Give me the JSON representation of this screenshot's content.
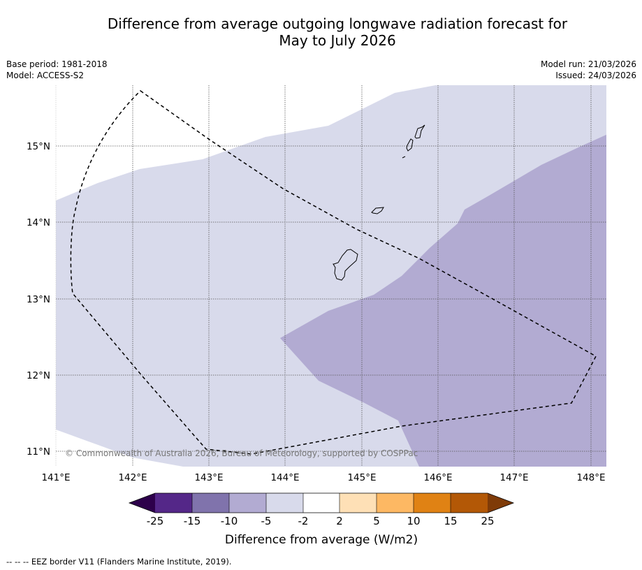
{
  "title": {
    "line1": "Difference from average outgoing longwave radiation forecast for",
    "line2": "May to July 2026"
  },
  "meta": {
    "base_period": "Base period: 1981-2018",
    "model": "Model: ACCESS-S2",
    "model_run": "Model run: 21/03/2026",
    "issued": "Issued: 24/03/2026"
  },
  "map": {
    "lon_labels": [
      "141°E",
      "142°E",
      "143°E",
      "144°E",
      "145°E",
      "146°E",
      "147°E",
      "148°E"
    ],
    "lat_labels": [
      "15°N",
      "14°N",
      "13°N",
      "12°N",
      "11°N"
    ],
    "copyright": "© Commonwealth of Australia 2026, Bureau of Meteorology, supported by COSPPac"
  },
  "colorbar": {
    "ticks": [
      "-25",
      "-15",
      "-10",
      "-5",
      "-2",
      "2",
      "5",
      "10",
      "15",
      "25"
    ],
    "colors": {
      "under": "#2d004b",
      "c1": "#542788",
      "c2": "#8073ac",
      "c3": "#b2abd2",
      "c4": "#d8daeb",
      "c5": "#ffffff",
      "c6": "#fee0b6",
      "c7": "#fdb863",
      "c8": "#e08214",
      "c9": "#b35806",
      "over": "#7f3b08"
    },
    "label": "Difference from average (W/m2)"
  },
  "footer": {
    "legend": "--  --  -- EEZ border V11 (Flanders Marine Institute, 2019)."
  }
}
